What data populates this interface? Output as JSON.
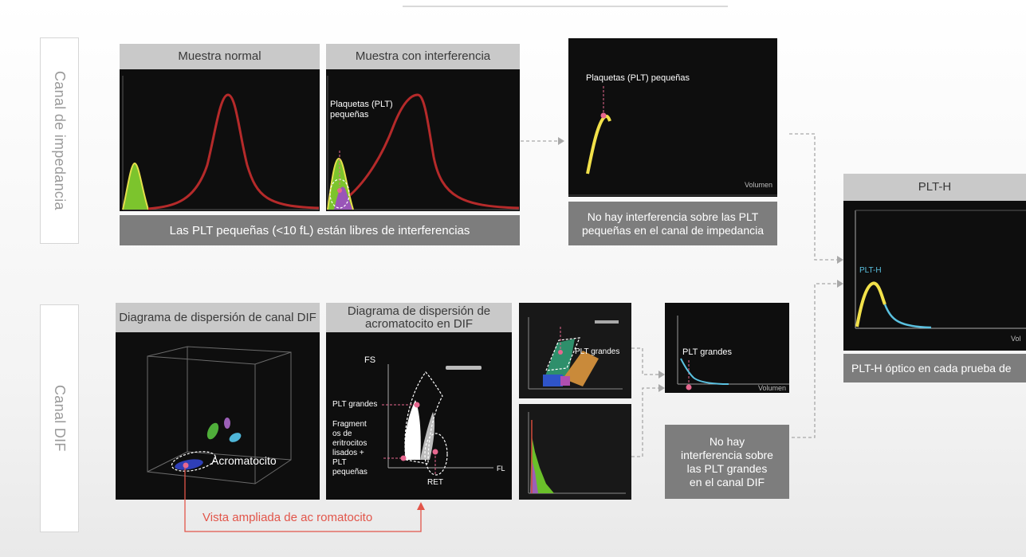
{
  "rows": {
    "impedance": "Canal de impedancia",
    "dif": "Canal DIF"
  },
  "impedance": {
    "normal_header": "Muestra normal",
    "interference_header": "Muestra con interferencia",
    "small_plt_label": "Plaquetas (PLT) pequeñas",
    "caption": "Las PLT pequeñas (<10 fL) están libres de interferencias",
    "result_label": "Plaquetas (PLT) pequeñas",
    "result_axis": "Volumen",
    "result_caption": "No hay interferencia sobre las PLT pequeñas en el canal de impedancia"
  },
  "dif": {
    "scatter_header": "Diagrama de dispersión de canal DIF",
    "acro_header": "Diagrama de dispersión de acromatocito en DIF",
    "acromatocito": "Acromatocito",
    "fs": "FS",
    "fl": "FL",
    "plt_grandes": "PLT grandes",
    "fragments": "Fragment os de eritrocitos lisados + PLT pequeñas",
    "ret": "RET",
    "thumb_label": "PLT grandes",
    "result_label": "PLT grandes",
    "result_axis": "Volumen",
    "result_caption": "No hay interferencia sobre las PLT grandes en el canal DIF",
    "zoom_label": "Vista ampliada de ac romatocito"
  },
  "plth": {
    "header": "PLT-H",
    "curve_label": "PLT-H",
    "axis": "Vol",
    "caption": "PLT-H óptico en cada prueba de"
  },
  "colors": {
    "gray_header": "#c9c9c9",
    "gray_caption": "#7d7d7d",
    "pink": "#e7678f",
    "red_curve": "#b52a2a",
    "yellow": "#f2e14a",
    "green": "#6abf2a",
    "cyan": "#5bc1e0",
    "arrow_red": "#e2554a"
  }
}
